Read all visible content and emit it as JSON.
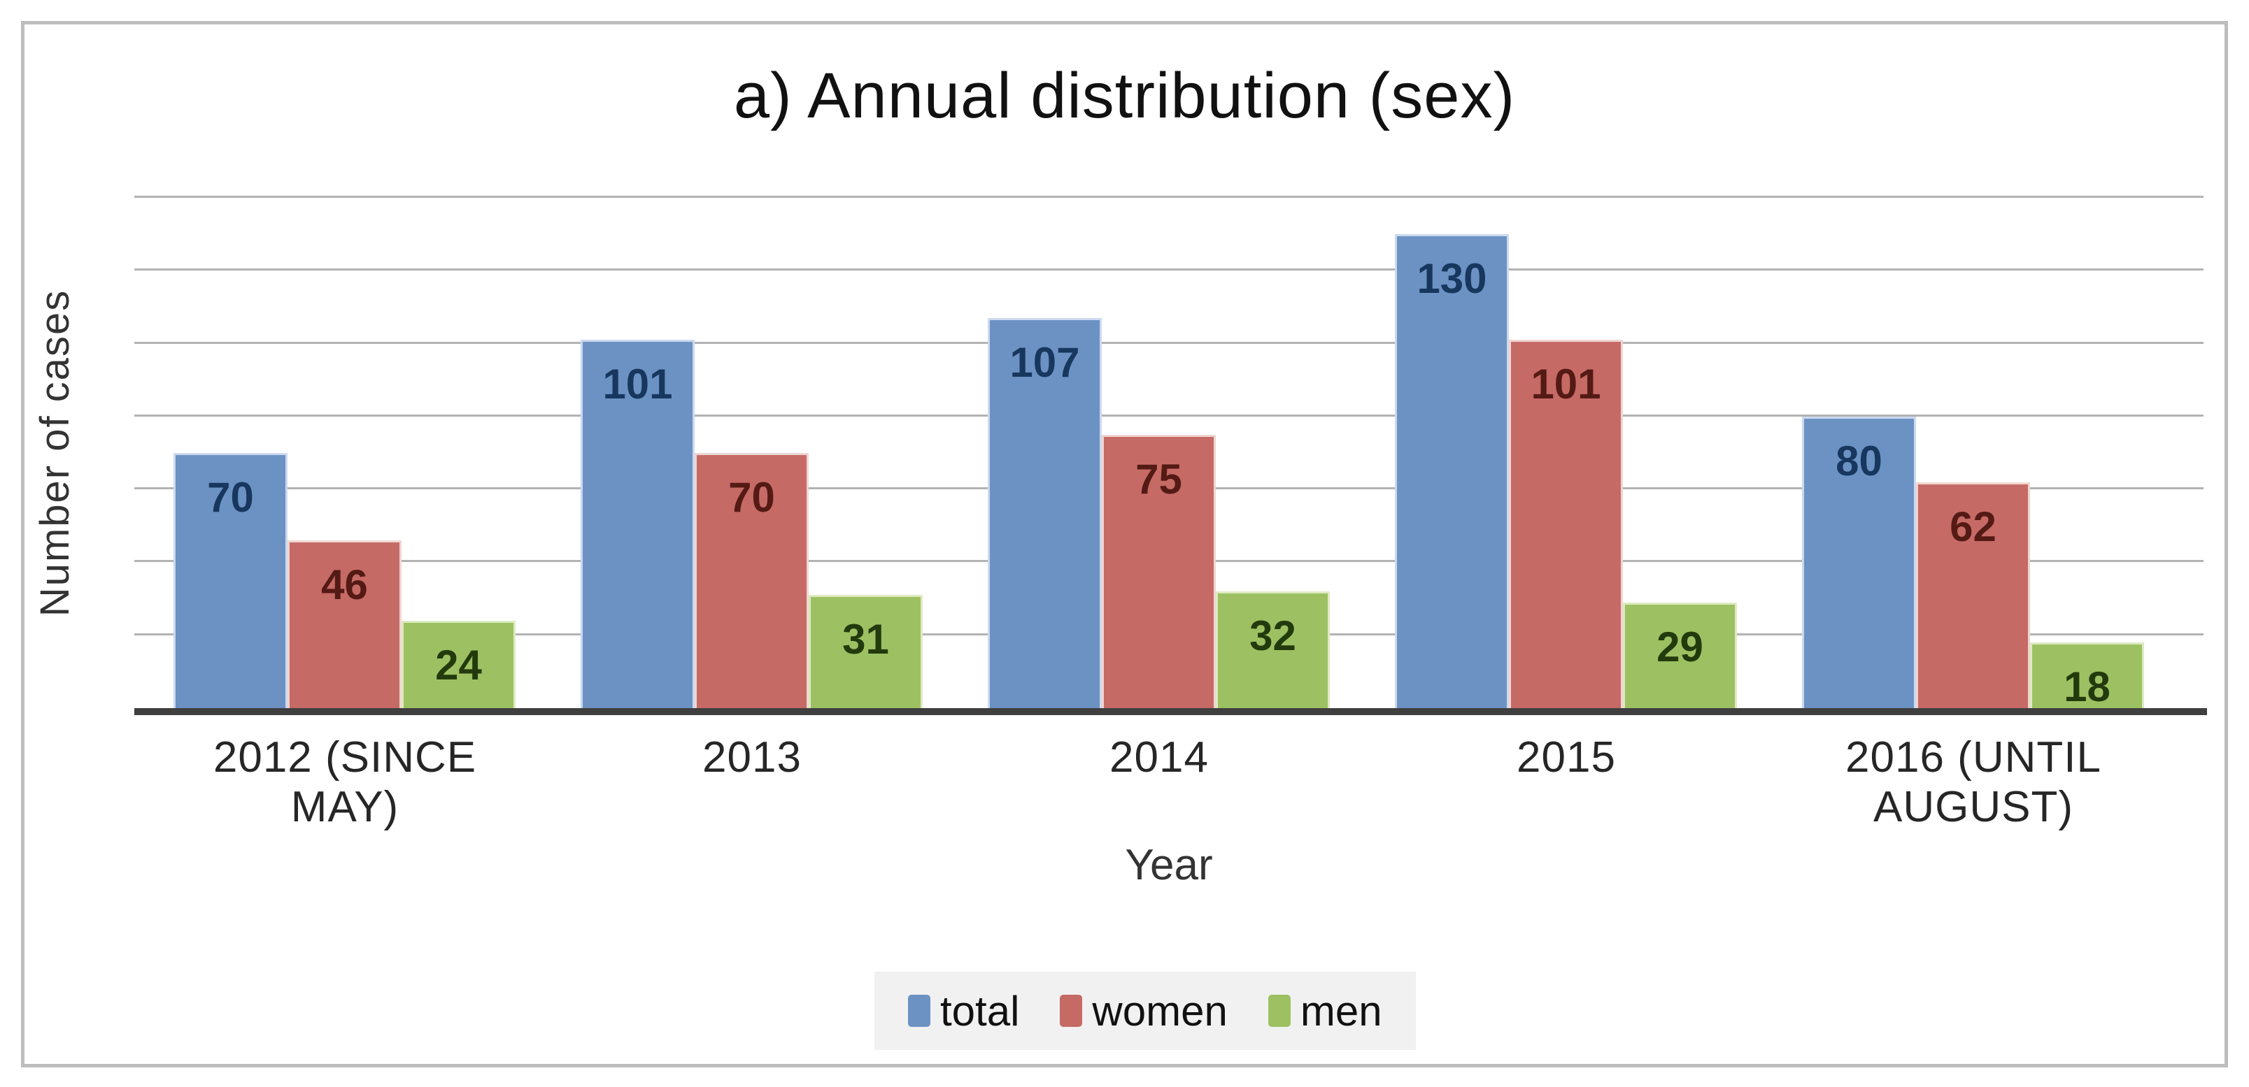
{
  "chart_data": {
    "type": "bar",
    "title": "a) Annual distribution (sex)",
    "xlabel": "Year",
    "ylabel": "Number of cases",
    "categories": [
      "2012 (SINCE MAY)",
      "2013",
      "2014",
      "2015",
      "2016 (UNTIL AUGUST)"
    ],
    "series": [
      {
        "name": "total",
        "color": "#6C92C4",
        "border_color": "#CBD9EE",
        "label_color": "#17375E",
        "values": [
          70,
          101,
          107,
          130,
          80
        ]
      },
      {
        "name": "women",
        "color": "#C66A66",
        "border_color": "#F0D5D1",
        "label_color": "#541A14",
        "values": [
          46,
          70,
          75,
          101,
          62
        ]
      },
      {
        "name": "men",
        "color": "#9DC162",
        "border_color": "#DEEAC1",
        "label_color": "#233A0D",
        "values": [
          24,
          31,
          32,
          29,
          18
        ]
      }
    ],
    "ylim": [
      0,
      140
    ],
    "gridline_step": 20,
    "y_tick_labels_visible": false,
    "grid": true,
    "legend_position": "bottom",
    "styles": {
      "gridline_color": "#B3B3B3",
      "axis_line_color": "#3F3F3F",
      "legend_bg": "#F1F1F1",
      "frame_border_color": "#BDBDBD",
      "background": "#FFFFFF"
    }
  }
}
